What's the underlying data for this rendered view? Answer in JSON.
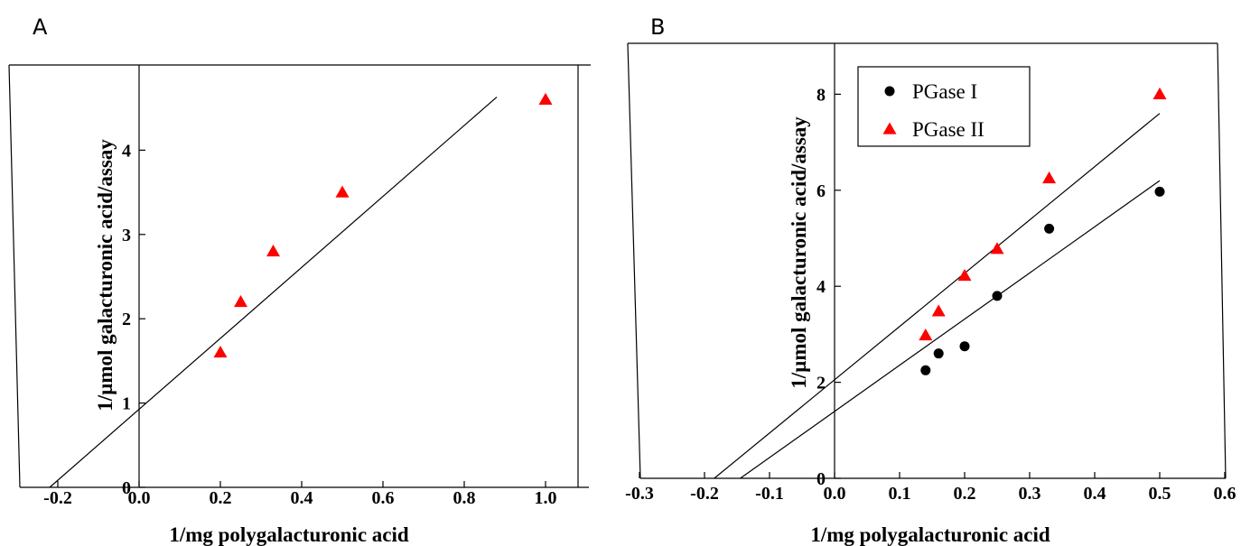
{
  "chart_data": [
    {
      "panel": "A",
      "type": "scatter",
      "xlabel": "1/mg polygalacturonic acid",
      "ylabel": "1/µmol galacturonic acid/assay",
      "xlim": [
        -0.3,
        1.1
      ],
      "ylim": [
        0,
        4.9
      ],
      "xticks": [
        -0.2,
        0.0,
        0.2,
        0.4,
        0.6,
        0.8,
        1.0
      ],
      "xtick_labels": [
        "-0.2",
        "0.0",
        "0.2",
        "0.4",
        "0.6",
        "0.8",
        "1.0"
      ],
      "yticks": [
        0,
        1,
        2,
        3,
        4
      ],
      "ytick_labels": [
        "0",
        "1",
        "2",
        "3",
        "4"
      ],
      "grid": false,
      "series": [
        {
          "color": "#ff0000",
          "marker": "triangle",
          "x": [
            0.2,
            0.25,
            0.33,
            0.5,
            1.0
          ],
          "y": [
            1.6,
            2.2,
            2.8,
            3.5,
            4.6
          ]
        }
      ],
      "fit_lines": [
        {
          "x": [
            -0.22,
            0.88
          ],
          "y": [
            0.0,
            4.63
          ]
        }
      ]
    },
    {
      "panel": "B",
      "type": "scatter",
      "xlabel": "1/mg polygalacturonic acid",
      "ylabel": "1/µmol galacturonic acid/assay",
      "xlim": [
        -0.3,
        0.6
      ],
      "ylim": [
        0,
        9
      ],
      "xticks": [
        -0.3,
        -0.2,
        -0.1,
        0.0,
        0.1,
        0.2,
        0.3,
        0.4,
        0.5,
        0.6
      ],
      "xtick_labels": [
        "-0.3",
        "-0.2",
        "-0.1",
        "0.0",
        "0.1",
        "0.2",
        "0.3",
        "0.4",
        "0.5",
        "0.6"
      ],
      "yticks": [
        0,
        2,
        4,
        6,
        8
      ],
      "ytick_labels": [
        "0",
        "2",
        "4",
        "6",
        "8"
      ],
      "grid": false,
      "legend_position": "top-left",
      "series": [
        {
          "name": "PGase I",
          "color": "#000000",
          "marker": "circle",
          "x": [
            0.14,
            0.16,
            0.2,
            0.25,
            0.33,
            0.5
          ],
          "y": [
            2.25,
            2.6,
            2.75,
            3.8,
            5.2,
            5.97
          ]
        },
        {
          "name": "PGase II",
          "color": "#ff0000",
          "marker": "triangle",
          "x": [
            0.14,
            0.16,
            0.2,
            0.25,
            0.33,
            0.5
          ],
          "y": [
            2.98,
            3.48,
            4.22,
            4.78,
            6.25,
            8.0
          ]
        }
      ],
      "fit_lines": [
        {
          "x": [
            -0.145,
            0.5
          ],
          "y": [
            0.0,
            6.2
          ]
        },
        {
          "x": [
            -0.185,
            0.5
          ],
          "y": [
            0.0,
            7.6
          ]
        }
      ]
    }
  ]
}
